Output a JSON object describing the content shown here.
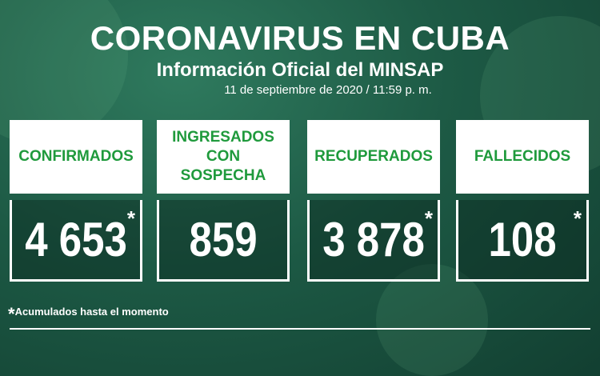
{
  "header": {
    "title": "CORONAVIRUS EN CUBA",
    "subtitle": "Información Oficial del MINSAP",
    "date": "11 de septiembre de 2020 / 11:59 p. m."
  },
  "cards": [
    {
      "label": "CONFIRMADOS",
      "value": "4 653",
      "note": "*"
    },
    {
      "label": "INGRESADOS CON SOSPECHA",
      "value": "859"
    },
    {
      "label": "RECUPERADOS",
      "value": "3 878",
      "note": "*"
    },
    {
      "label": "FALLECIDOS",
      "value": "108",
      "note": "*"
    }
  ],
  "footnote": {
    "marker": "*",
    "text": "Acumulados hasta el momento"
  }
}
